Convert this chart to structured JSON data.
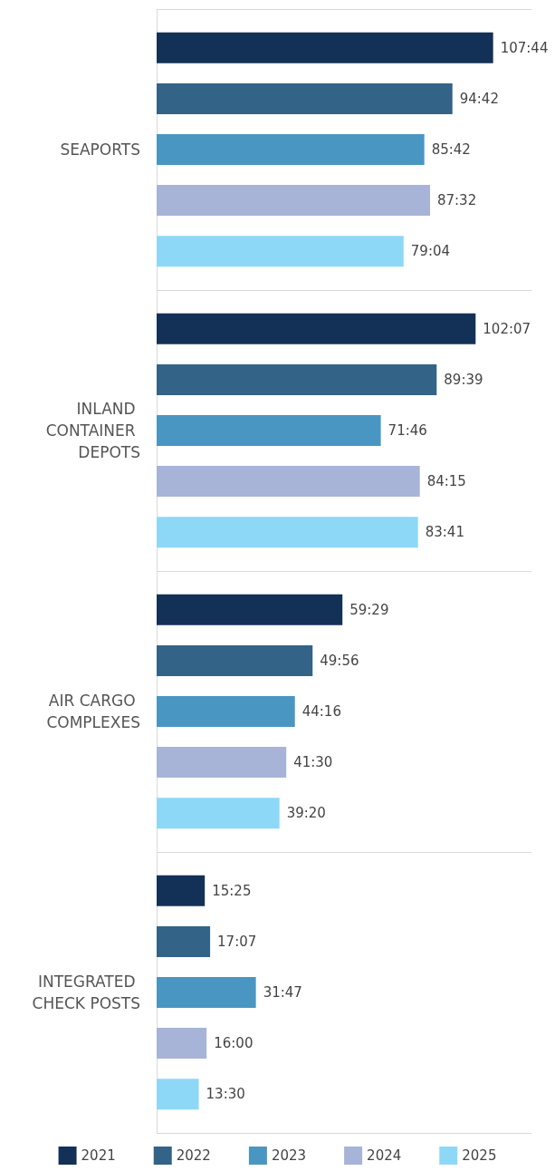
{
  "chart_data": {
    "type": "bar",
    "orientation": "horizontal",
    "categories": [
      "SEAPORTS",
      "INLAND CONTAINER DEPOTS",
      "AIR CARGO COMPLEXES",
      "INTEGRATED CHECK POSTS"
    ],
    "series": [
      {
        "name": "2021",
        "color": "#133156",
        "values": [
          107.73,
          102.12,
          59.48,
          15.42
        ],
        "value_labels": [
          "107:44",
          "102:07",
          "59:29",
          "15:25"
        ]
      },
      {
        "name": "2022",
        "color": "#336386",
        "values": [
          94.7,
          89.65,
          49.93,
          17.12
        ],
        "value_labels": [
          "94:42",
          "89:39",
          "49:56",
          "17:07"
        ]
      },
      {
        "name": "2023",
        "color": "#4a96c2",
        "values": [
          85.7,
          71.77,
          44.27,
          31.78
        ],
        "value_labels": [
          "85:42",
          "71:46",
          "44:16",
          "31:47"
        ]
      },
      {
        "name": "2024",
        "color": "#a7b4d7",
        "values": [
          87.53,
          84.25,
          41.5,
          16.0
        ],
        "value_labels": [
          "87:32",
          "84:15",
          "41:30",
          "16:00"
        ]
      },
      {
        "name": "2025",
        "color": "#8ed8f7",
        "values": [
          79.07,
          83.68,
          39.33,
          13.5
        ],
        "value_labels": [
          "79:04",
          "83:41",
          "39:20",
          "13:30"
        ]
      }
    ],
    "xlim": [
      0,
      120
    ],
    "tick_labels": "y",
    "grid": "y",
    "legend": "bottom"
  }
}
